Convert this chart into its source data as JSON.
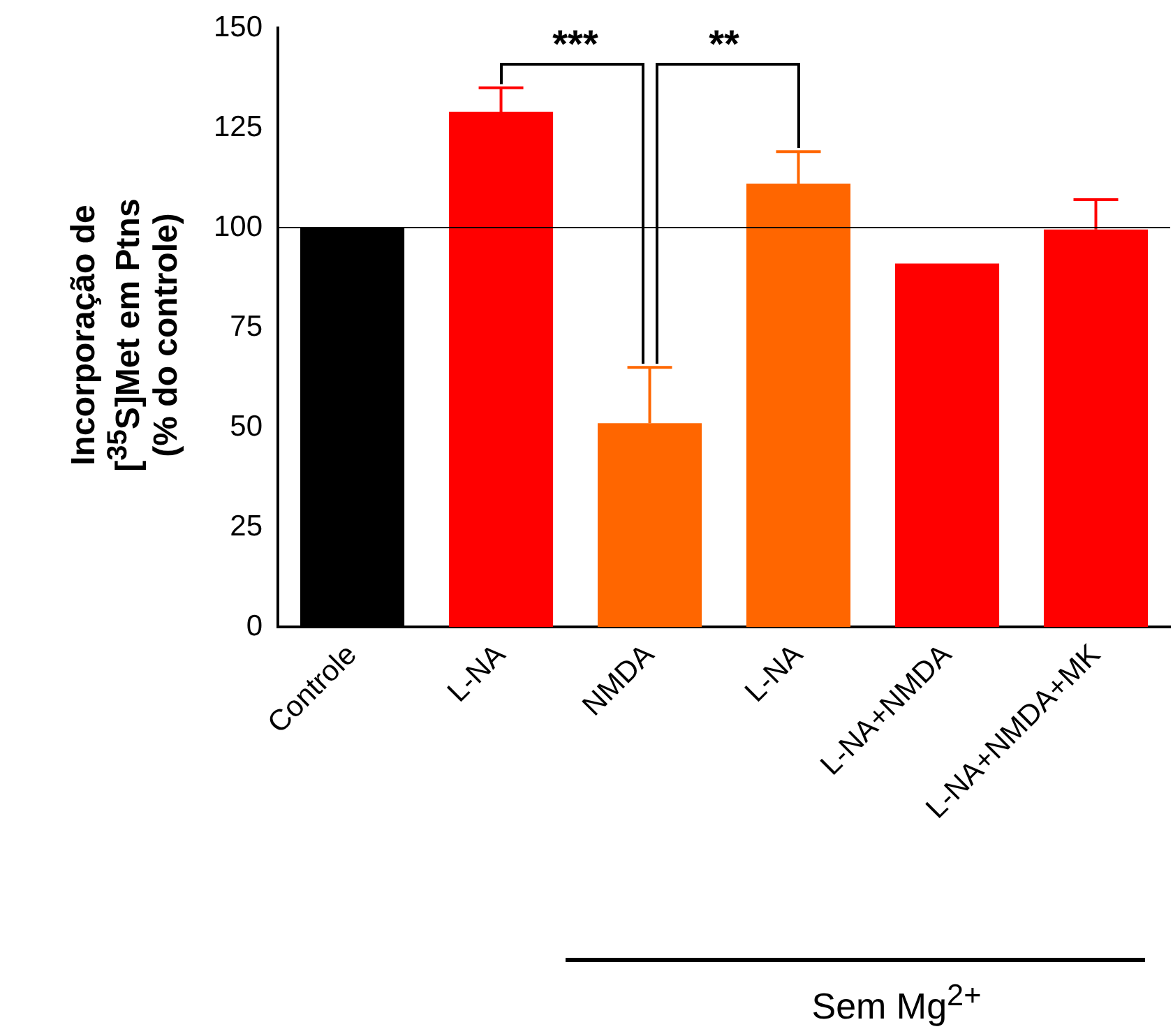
{
  "chart_data": {
    "type": "bar",
    "ylabel": "Incorporação de\n[$^{35}$S]Met em Ptns\n(% do controle)",
    "categories": [
      "Controle",
      "L-NA",
      "NMDA",
      "L-NA",
      "L-NA+NMDA",
      "L-NA+NMDA+MK"
    ],
    "values": [
      100,
      129,
      51,
      111,
      91,
      99.5
    ],
    "colors": [
      "#000000",
      "#ff0000",
      "#ff6600",
      "#ff6600",
      "#ff0000",
      "#ff0000"
    ],
    "errors": [
      null,
      [
        129,
        135
      ],
      [
        51,
        65
      ],
      [
        111,
        119
      ],
      null,
      [
        99.5,
        107
      ]
    ],
    "ylim": [
      0,
      150
    ],
    "yticks": [
      0,
      25,
      50,
      75,
      100,
      125,
      150
    ],
    "grid": false,
    "legend": false,
    "ref_lines": [
      {
        "axis": "y",
        "value": 100,
        "color": "#000000"
      }
    ],
    "annotations": [
      "***",
      "**",
      "Sem Mg$^{2+}$"
    ]
  }
}
